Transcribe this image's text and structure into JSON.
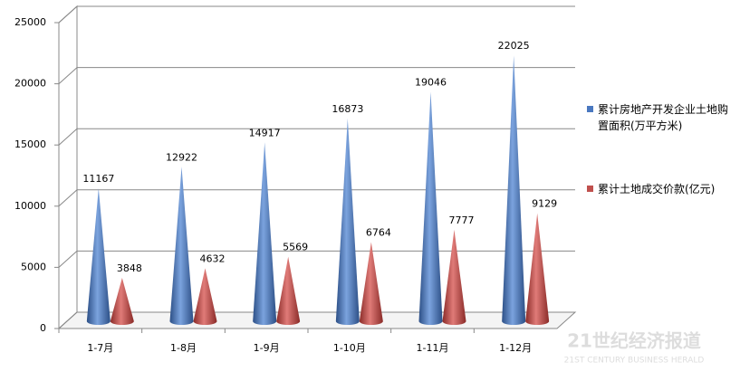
{
  "chart_data": {
    "type": "cone",
    "categories": [
      "1-7月",
      "1-8月",
      "1-9月",
      "1-10月",
      "1-11月",
      "1-12月"
    ],
    "series": [
      {
        "name": "累计房地产开发企业土地购置面积(万平方米)",
        "color": "#4a78c0",
        "values": [
          11167,
          12922,
          14917,
          16873,
          19046,
          22025
        ]
      },
      {
        "name": "累计土地成交价款(亿元)",
        "color": "#c0504d",
        "values": [
          3848,
          4632,
          5569,
          6764,
          7777,
          9129
        ]
      }
    ],
    "ylim": [
      0,
      25000
    ],
    "yticks": [
      0,
      5000,
      10000,
      15000,
      20000,
      25000
    ],
    "grid": true,
    "watermark": [
      "21世纪经济报道",
      "21ST CENTURY BUSINESS HERALD"
    ]
  }
}
